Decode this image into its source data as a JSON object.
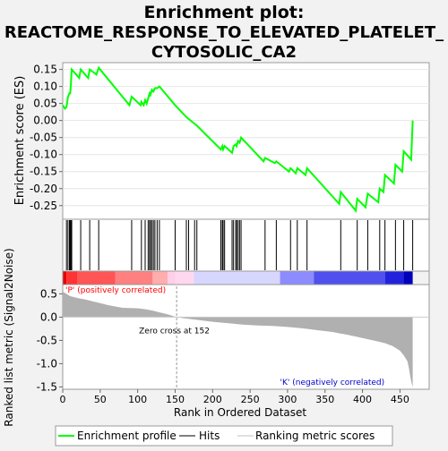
{
  "title_line1": "Enrichment plot:",
  "title_line2": "REACTOME_RESPONSE_TO_ELEVATED_PLATELET_",
  "title_line3": "CYTOSOLIC_CA2",
  "colors": {
    "enrichment_line": "#00ff00",
    "hits": "#000000",
    "metric_fill": "#b0b0b0",
    "pos_label": "#ff0000",
    "neg_label": "#0000cd"
  },
  "chart_data": [
    {
      "type": "line",
      "name": "enrichment-profile",
      "ylabel": "Enrichment score (ES)",
      "xlim": [
        0,
        489
      ],
      "ylim": [
        -0.29,
        0.17
      ],
      "yticks": [
        "0.15",
        "0.10",
        "0.05",
        "0.00",
        "-0.05",
        "-0.10",
        "-0.15",
        "-0.20",
        "-0.25"
      ],
      "points": [
        [
          0,
          0.045
        ],
        [
          3,
          0.035
        ],
        [
          5,
          0.04
        ],
        [
          7,
          0.07
        ],
        [
          9,
          0.08
        ],
        [
          10,
          0.08
        ],
        [
          11,
          0.11
        ],
        [
          12,
          0.15
        ],
        [
          22,
          0.125
        ],
        [
          24,
          0.15
        ],
        [
          34,
          0.125
        ],
        [
          36,
          0.15
        ],
        [
          45,
          0.135
        ],
        [
          48,
          0.155
        ],
        [
          89,
          0.045
        ],
        [
          92,
          0.07
        ],
        [
          104,
          0.045
        ],
        [
          105,
          0.055
        ],
        [
          108,
          0.045
        ],
        [
          110,
          0.06
        ],
        [
          112,
          0.05
        ],
        [
          114,
          0.065
        ],
        [
          116,
          0.08
        ],
        [
          117,
          0.075
        ],
        [
          119,
          0.09
        ],
        [
          121,
          0.085
        ],
        [
          123,
          0.095
        ],
        [
          126,
          0.095
        ],
        [
          129,
          0.1
        ],
        [
          150,
          0.045
        ],
        [
          165,
          0.01
        ],
        [
          179,
          -0.015
        ],
        [
          211,
          -0.085
        ],
        [
          213,
          -0.075
        ],
        [
          214,
          -0.085
        ],
        [
          216,
          -0.075
        ],
        [
          226,
          -0.095
        ],
        [
          228,
          -0.075
        ],
        [
          231,
          -0.07
        ],
        [
          232,
          -0.075
        ],
        [
          234,
          -0.06
        ],
        [
          236,
          -0.065
        ],
        [
          238,
          -0.05
        ],
        [
          268,
          -0.12
        ],
        [
          270,
          -0.11
        ],
        [
          283,
          -0.125
        ],
        [
          285,
          -0.12
        ],
        [
          302,
          -0.15
        ],
        [
          304,
          -0.14
        ],
        [
          311,
          -0.155
        ],
        [
          313,
          -0.14
        ],
        [
          324,
          -0.16
        ],
        [
          326,
          -0.14
        ],
        [
          369,
          -0.245
        ],
        [
          371,
          -0.21
        ],
        [
          391,
          -0.265
        ],
        [
          393,
          -0.23
        ],
        [
          404,
          -0.255
        ],
        [
          407,
          -0.215
        ],
        [
          421,
          -0.24
        ],
        [
          423,
          -0.2
        ],
        [
          428,
          -0.21
        ],
        [
          430,
          -0.16
        ],
        [
          442,
          -0.185
        ],
        [
          444,
          -0.13
        ],
        [
          453,
          -0.15
        ],
        [
          455,
          -0.09
        ],
        [
          465,
          -0.115
        ],
        [
          467,
          0.0
        ]
      ]
    },
    {
      "type": "scatter",
      "name": "hits",
      "hit_ranks": [
        5,
        7,
        9,
        10,
        11,
        12,
        24,
        36,
        48,
        92,
        105,
        110,
        114,
        116,
        117,
        119,
        121,
        123,
        126,
        129,
        150,
        165,
        168,
        176,
        179,
        211,
        213,
        214,
        216,
        226,
        228,
        231,
        232,
        234,
        236,
        238,
        270,
        285,
        304,
        313,
        326,
        371,
        393,
        407,
        423,
        430,
        444,
        455,
        467
      ]
    },
    {
      "type": "area",
      "name": "ranked-list-metric",
      "ylabel": "Ranked list metric (Signal2Noise)",
      "xlabel": "Rank in Ordered Dataset",
      "xlim": [
        0,
        489
      ],
      "ylim": [
        -1.55,
        0.7
      ],
      "xticks": [
        "0",
        "50",
        "100",
        "150",
        "200",
        "250",
        "300",
        "350",
        "400",
        "450"
      ],
      "yticks": [
        "0.5",
        "0.0",
        "-0.5",
        "-1.0",
        "-1.5"
      ],
      "profile": [
        [
          0,
          0.55
        ],
        [
          5,
          0.5
        ],
        [
          10,
          0.45
        ],
        [
          15,
          0.43
        ],
        [
          20,
          0.41
        ],
        [
          30,
          0.38
        ],
        [
          40,
          0.34
        ],
        [
          50,
          0.3
        ],
        [
          60,
          0.26
        ],
        [
          70,
          0.23
        ],
        [
          80,
          0.2
        ],
        [
          100,
          0.19
        ],
        [
          110,
          0.17
        ],
        [
          120,
          0.14
        ],
        [
          130,
          0.1
        ],
        [
          140,
          0.06
        ],
        [
          150,
          0.01
        ],
        [
          152,
          0.0
        ],
        [
          160,
          -0.02
        ],
        [
          170,
          -0.04
        ],
        [
          180,
          -0.06
        ],
        [
          200,
          -0.1
        ],
        [
          220,
          -0.13
        ],
        [
          240,
          -0.16
        ],
        [
          260,
          -0.18
        ],
        [
          280,
          -0.19
        ],
        [
          300,
          -0.21
        ],
        [
          320,
          -0.24
        ],
        [
          340,
          -0.28
        ],
        [
          360,
          -0.32
        ],
        [
          380,
          -0.38
        ],
        [
          400,
          -0.45
        ],
        [
          420,
          -0.52
        ],
        [
          430,
          -0.56
        ],
        [
          440,
          -0.62
        ],
        [
          450,
          -0.72
        ],
        [
          455,
          -0.82
        ],
        [
          460,
          -0.95
        ],
        [
          462,
          -1.1
        ],
        [
          464,
          -1.3
        ],
        [
          466,
          -1.45
        ],
        [
          467,
          -1.5
        ]
      ],
      "zero_cross_label": "Zero cross at 152",
      "zero_cross_rank": 152,
      "pos_label": "'P' (positively correlated)",
      "neg_label": "'K' (negatively correlated)"
    }
  ],
  "legend": [
    {
      "label": "Enrichment profile",
      "kind": "line",
      "color": "#00ff00"
    },
    {
      "label": "Hits",
      "kind": "line",
      "color": "#000000"
    },
    {
      "label": "Ranking metric scores",
      "kind": "line",
      "color": "#c0c0c0"
    }
  ]
}
